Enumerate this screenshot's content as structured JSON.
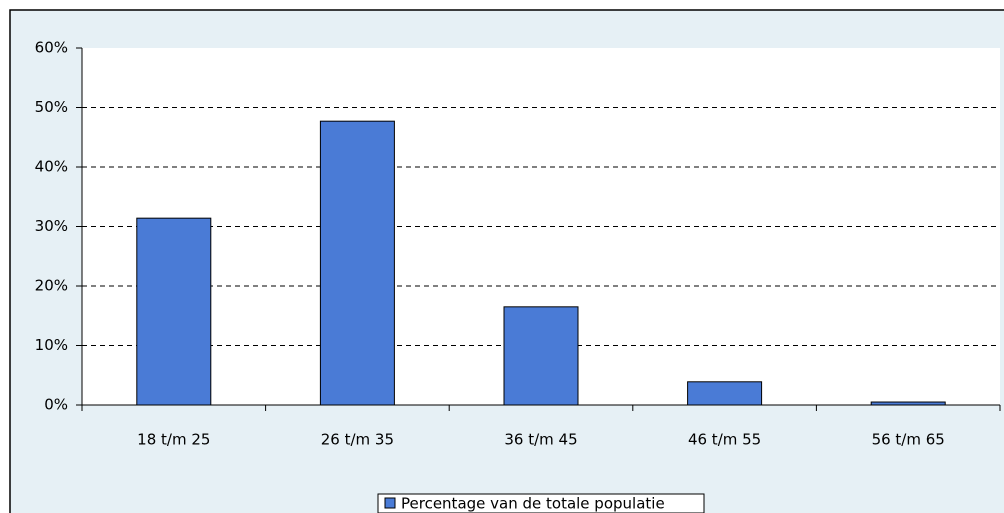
{
  "chart_data": {
    "type": "bar",
    "categories": [
      "18 t/m 25",
      "26 t/m 35",
      "36 t/m 45",
      "46 t/m 55",
      "56 t/m 65"
    ],
    "series": [
      {
        "name": "Percentage van de totale populatie",
        "color": "#4a7bd6",
        "values": [
          31.4,
          47.7,
          16.5,
          3.9,
          0.5
        ]
      }
    ],
    "ylim": [
      0,
      60
    ],
    "yticks": [
      {
        "value": 0,
        "label": "0%"
      },
      {
        "value": 10,
        "label": "10%"
      },
      {
        "value": 20,
        "label": "20%"
      },
      {
        "value": 30,
        "label": "30%"
      },
      {
        "value": 40,
        "label": "40%"
      },
      {
        "value": 50,
        "label": "50%"
      },
      {
        "value": 60,
        "label": "60%"
      }
    ],
    "grid": true,
    "legend": "bottom"
  }
}
